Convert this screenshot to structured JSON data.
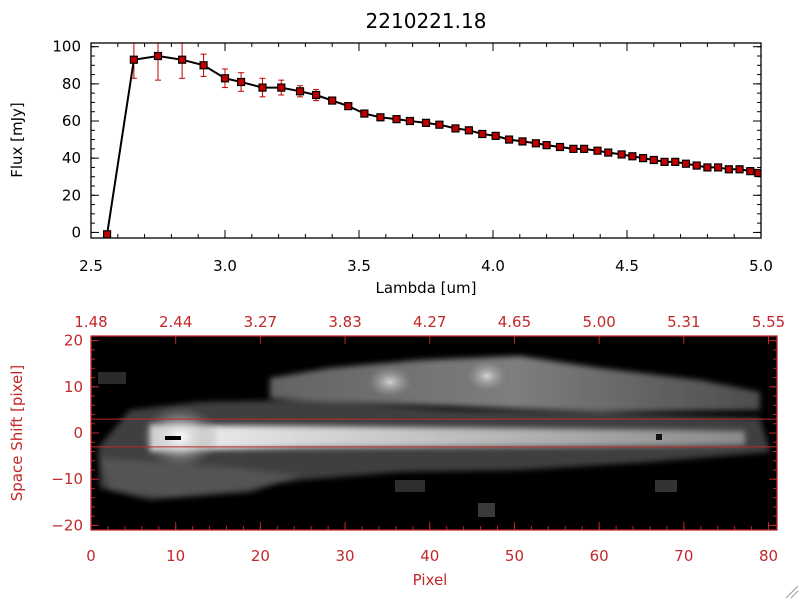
{
  "chart_data": [
    {
      "type": "line",
      "title": "2210221.18",
      "xlabel": "Lambda [um]",
      "ylabel": "Flux [mJy]",
      "xlim": [
        2.5,
        5.0
      ],
      "ylim": [
        -3,
        102
      ],
      "x_ticks": [
        "2.5",
        "3.0",
        "3.5",
        "4.0",
        "4.5",
        "5.0"
      ],
      "y_ticks": [
        "0",
        "20",
        "40",
        "60",
        "80",
        "100"
      ],
      "line_color": "#000000",
      "marker_color": "#c00000",
      "series": [
        {
          "marker": "square",
          "x": [
            2.56,
            2.66,
            2.75,
            2.84,
            2.92,
            3.0,
            3.06,
            3.14,
            3.21,
            3.28,
            3.34,
            3.4,
            3.46,
            3.52,
            3.58,
            3.64,
            3.69,
            3.75,
            3.8,
            3.86,
            3.91,
            3.96,
            4.01,
            4.06,
            4.11,
            4.16,
            4.2,
            4.25,
            4.3,
            4.34,
            4.39,
            4.43,
            4.48,
            4.52,
            4.56,
            4.6,
            4.64,
            4.68,
            4.72,
            4.76,
            4.8,
            4.84,
            4.88,
            4.92,
            4.96,
            4.99
          ],
          "y": [
            -1,
            93,
            95,
            93,
            90,
            83,
            81,
            78,
            78,
            76,
            74,
            71,
            68,
            64,
            62,
            61,
            60,
            59,
            58,
            56,
            55,
            53,
            52,
            50,
            49,
            48,
            47,
            46,
            45,
            45,
            44,
            43,
            42,
            41,
            40,
            39,
            38,
            38,
            37,
            36,
            35,
            35,
            34,
            34,
            33,
            32
          ],
          "yerr": [
            0,
            10,
            13,
            10,
            6,
            5,
            5,
            5,
            4,
            3,
            3,
            1,
            0,
            0,
            0,
            0,
            0,
            0,
            0,
            0,
            0,
            0,
            0,
            0,
            0,
            0,
            0,
            0,
            0,
            0,
            0,
            0,
            0,
            0,
            0,
            0,
            0,
            0,
            0,
            0,
            0,
            0,
            0,
            0,
            0,
            0
          ]
        }
      ]
    },
    {
      "type": "heatmap",
      "xlabel": "Pixel",
      "ylabel": "Space Shift [pixel]",
      "xlim": [
        0,
        81
      ],
      "ylim": [
        -21,
        21
      ],
      "x_ticks": [
        "0",
        "10",
        "20",
        "30",
        "40",
        "50",
        "60",
        "70",
        "80"
      ],
      "y_ticks": [
        "-20",
        "-10",
        "0",
        "10",
        "20"
      ],
      "top_axis_ticks": [
        "1.48",
        "2.44",
        "3.27",
        "3.83",
        "4.27",
        "4.65",
        "5.00",
        "5.31",
        "5.55"
      ],
      "axis_color": "#c0282a",
      "colormap": "grayscale",
      "guide_lines_y": [
        3,
        -3
      ]
    }
  ]
}
